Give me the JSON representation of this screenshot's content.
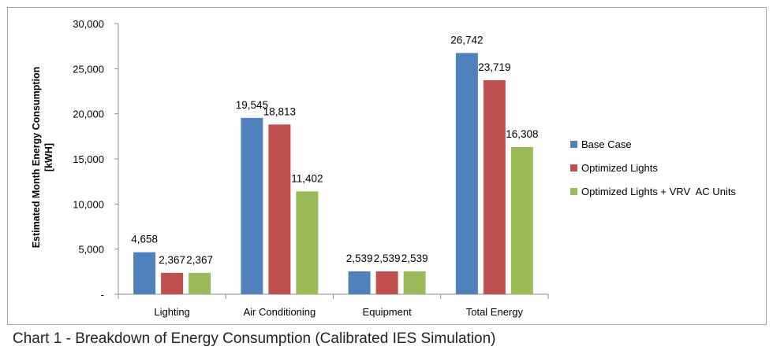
{
  "caption": "Chart 1 - Breakdown of Energy Consumption (Calibrated IES Simulation)",
  "chart_data": {
    "type": "bar",
    "title": "",
    "xlabel": "",
    "ylabel": "Estimated Month Energy Consumption [kWH]",
    "ylabel_lines": [
      "Estimated Month Energy Consumption",
      "[kWH]"
    ],
    "ylim": [
      0,
      30000
    ],
    "yticks": [
      0,
      5000,
      10000,
      15000,
      20000,
      25000,
      30000
    ],
    "ytick_labels": [
      "-",
      "5,000",
      "10,000",
      "15,000",
      "20,000",
      "25,000",
      "30,000"
    ],
    "grid": false,
    "legend_position": "right",
    "categories": [
      "Lighting",
      "Air Conditioning",
      "Equipment",
      "Total Energy"
    ],
    "series": [
      {
        "name": "Base Case",
        "color": "#4f81bd",
        "values": [
          4658,
          19545,
          2539,
          26742
        ],
        "labels": [
          "4,658",
          "19,545",
          "2,539",
          "26,742"
        ]
      },
      {
        "name": "Optimized Lights",
        "color": "#c0504d",
        "values": [
          2367,
          18813,
          2539,
          23719
        ],
        "labels": [
          "2,367",
          "18,813",
          "2,539",
          "23,719"
        ]
      },
      {
        "name": "Optimized Lights + VRV  AC Units",
        "color": "#9bbb59",
        "values": [
          2367,
          11402,
          2539,
          16308
        ],
        "labels": [
          "2,367",
          "11,402",
          "2,539",
          "16,308"
        ]
      }
    ]
  }
}
